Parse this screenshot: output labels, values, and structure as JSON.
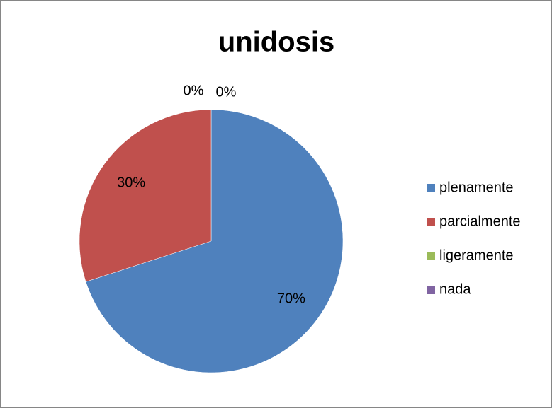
{
  "chart_data": {
    "type": "pie",
    "title": "unidosis",
    "categories": [
      "plenamente",
      "parcialmente",
      "ligeramente",
      "nada"
    ],
    "values": [
      70,
      30,
      0,
      0
    ],
    "value_labels": [
      "70%",
      "30%",
      "0%",
      "0%"
    ],
    "colors": [
      "#4f81bd",
      "#c0504d",
      "#9bbb59",
      "#8064a2"
    ],
    "legend": "right"
  }
}
